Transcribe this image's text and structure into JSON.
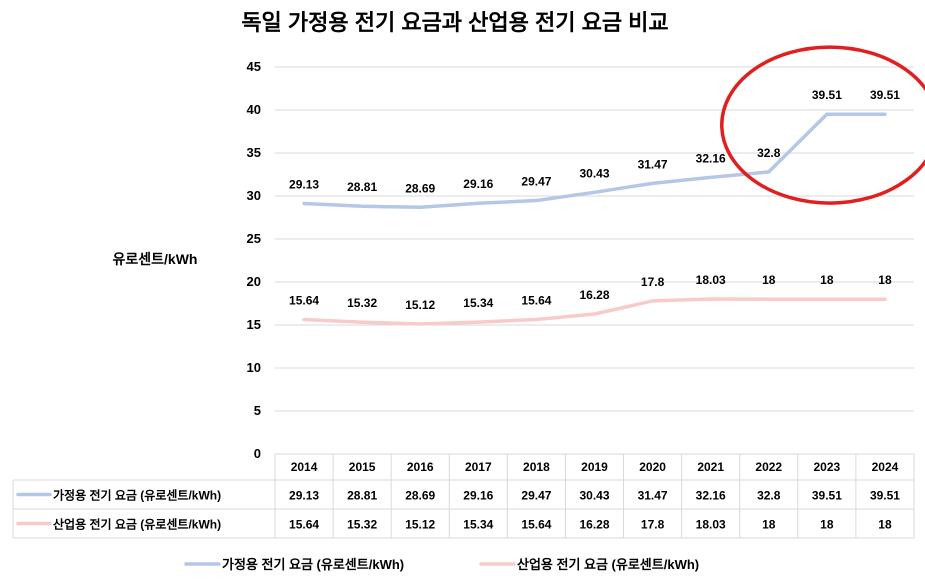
{
  "chart_data": {
    "type": "line",
    "title": "독일 가정용 전기 요금과 산업용 전기 요금 비교",
    "ylabel": "유로센트/kWh",
    "xlabel": "",
    "ylim": [
      0,
      45
    ],
    "yticks": [
      0,
      5,
      10,
      15,
      20,
      25,
      30,
      35,
      40,
      45
    ],
    "grid": true,
    "legend": "bottom",
    "categories": [
      "2014",
      "2015",
      "2016",
      "2017",
      "2018",
      "2019",
      "2020",
      "2021",
      "2022",
      "2023",
      "2024"
    ],
    "series": [
      {
        "name": "가정용 전기 요금 (유로센트/kWh)",
        "color": "#b4c7e7",
        "values": [
          29.13,
          28.81,
          28.69,
          29.16,
          29.47,
          30.43,
          31.47,
          32.16,
          32.8,
          39.51,
          39.51
        ]
      },
      {
        "name": "산업용 전기 요금 (유로센트/kWh)",
        "color": "#f8cbca",
        "values": [
          15.64,
          15.32,
          15.12,
          15.34,
          15.64,
          16.28,
          17.8,
          18.03,
          18,
          18,
          18
        ]
      }
    ],
    "annotation": {
      "type": "circle",
      "color": "#e02020",
      "target_categories": [
        "2022",
        "2023",
        "2024"
      ]
    }
  }
}
